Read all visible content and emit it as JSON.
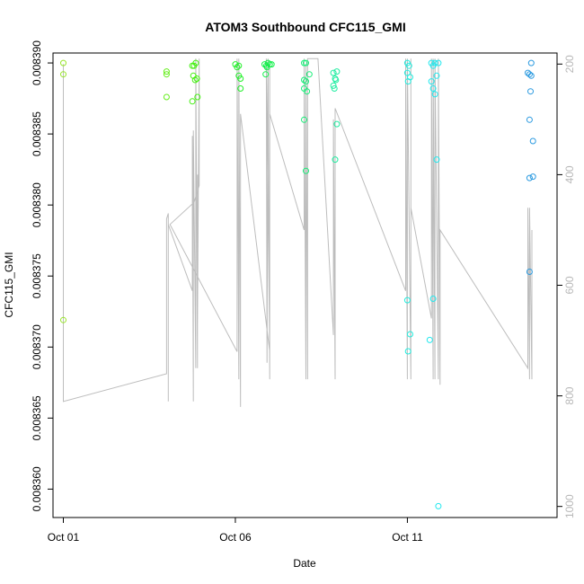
{
  "chart_data": {
    "type": "scatter",
    "title": "ATOM3 Southbound CFC115_GMI",
    "xlabel": "Date",
    "ylabel": "CFC115_GMI",
    "x_ticks": [
      {
        "label": "Oct 01",
        "day": 1
      },
      {
        "label": "Oct 06",
        "day": 6
      },
      {
        "label": "Oct 11",
        "day": 11
      }
    ],
    "xlim_days": [
      0.7,
      15.35
    ],
    "y_ticks": [
      "0.008360",
      "0.008365",
      "0.008370",
      "0.008375",
      "0.008380",
      "0.008385",
      "0.008390"
    ],
    "ylim": [
      0.008358,
      0.0083907
    ],
    "y2_ticks": [
      "200",
      "400",
      "600",
      "800",
      "1000"
    ],
    "y2lim": [
      1020,
      180
    ],
    "pressure_color": "#bdbdbd",
    "points": [
      {
        "day": 1.0,
        "value": 0.00839,
        "color": "#9ae62c"
      },
      {
        "day": 1.0,
        "value": 0.0083892,
        "color": "#9ae62c"
      },
      {
        "day": 1.0,
        "value": 0.0083719,
        "color": "#9ae62c"
      },
      {
        "day": 4.0,
        "value": 0.0083894,
        "color": "#66ee1c"
      },
      {
        "day": 4.0,
        "value": 0.0083892,
        "color": "#66ee1c"
      },
      {
        "day": 4.0,
        "value": 0.0083876,
        "color": "#66ee1c"
      },
      {
        "day": 4.75,
        "value": 0.0083898,
        "color": "#44f011"
      },
      {
        "day": 4.8,
        "value": 0.0083898,
        "color": "#44f011"
      },
      {
        "day": 4.85,
        "value": 0.00839,
        "color": "#44f011"
      },
      {
        "day": 4.78,
        "value": 0.0083891,
        "color": "#44f011"
      },
      {
        "day": 4.83,
        "value": 0.0083888,
        "color": "#44f011"
      },
      {
        "day": 4.88,
        "value": 0.0083889,
        "color": "#44f011"
      },
      {
        "day": 4.75,
        "value": 0.0083873,
        "color": "#44f011"
      },
      {
        "day": 4.9,
        "value": 0.0083876,
        "color": "#44f011"
      },
      {
        "day": 6.0,
        "value": 0.0083899,
        "color": "#22f02a"
      },
      {
        "day": 6.05,
        "value": 0.0083897,
        "color": "#22f02a"
      },
      {
        "day": 6.1,
        "value": 0.0083898,
        "color": "#22f02a"
      },
      {
        "day": 6.1,
        "value": 0.0083891,
        "color": "#22f02a"
      },
      {
        "day": 6.15,
        "value": 0.0083889,
        "color": "#22f02a"
      },
      {
        "day": 6.15,
        "value": 0.0083882,
        "color": "#22f02a"
      },
      {
        "day": 6.85,
        "value": 0.0083899,
        "color": "#11f04a"
      },
      {
        "day": 6.9,
        "value": 0.0083898,
        "color": "#11f04a"
      },
      {
        "day": 6.95,
        "value": 0.00839,
        "color": "#11f04a"
      },
      {
        "day": 7.0,
        "value": 0.0083899,
        "color": "#11f04a"
      },
      {
        "day": 6.92,
        "value": 0.0083897,
        "color": "#11f04a"
      },
      {
        "day": 6.88,
        "value": 0.0083892,
        "color": "#11f04a"
      },
      {
        "day": 7.05,
        "value": 0.0083899,
        "color": "#11f04a"
      },
      {
        "day": 8.0,
        "value": 0.00839,
        "color": "#18ee78"
      },
      {
        "day": 8.05,
        "value": 0.00839,
        "color": "#18ee78"
      },
      {
        "day": 8.0,
        "value": 0.0083888,
        "color": "#18ee78"
      },
      {
        "day": 8.05,
        "value": 0.0083887,
        "color": "#18ee78"
      },
      {
        "day": 8.0,
        "value": 0.0083882,
        "color": "#18ee78"
      },
      {
        "day": 8.08,
        "value": 0.008388,
        "color": "#18ee78"
      },
      {
        "day": 8.15,
        "value": 0.0083892,
        "color": "#18ee78"
      },
      {
        "day": 8.0,
        "value": 0.008386,
        "color": "#18ee78"
      },
      {
        "day": 8.05,
        "value": 0.0083824,
        "color": "#18ee78"
      },
      {
        "day": 8.85,
        "value": 0.0083893,
        "color": "#1eeda0"
      },
      {
        "day": 8.9,
        "value": 0.0083889,
        "color": "#1eeda0"
      },
      {
        "day": 8.95,
        "value": 0.0083894,
        "color": "#1eeda0"
      },
      {
        "day": 8.85,
        "value": 0.0083884,
        "color": "#1eeda0"
      },
      {
        "day": 8.88,
        "value": 0.0083882,
        "color": "#1eeda0"
      },
      {
        "day": 8.92,
        "value": 0.0083888,
        "color": "#1eeda0"
      },
      {
        "day": 8.95,
        "value": 0.0083857,
        "color": "#1eeda0"
      },
      {
        "day": 8.9,
        "value": 0.0083832,
        "color": "#1eeda0"
      },
      {
        "day": 11.0,
        "value": 0.00839,
        "color": "#22eee0"
      },
      {
        "day": 11.05,
        "value": 0.0083898,
        "color": "#22eee0"
      },
      {
        "day": 11.0,
        "value": 0.0083893,
        "color": "#22eee0"
      },
      {
        "day": 11.08,
        "value": 0.008389,
        "color": "#22eee0"
      },
      {
        "day": 11.02,
        "value": 0.0083887,
        "color": "#22eee0"
      },
      {
        "day": 11.0,
        "value": 0.0083733,
        "color": "#22eee0"
      },
      {
        "day": 11.08,
        "value": 0.0083709,
        "color": "#22eee0"
      },
      {
        "day": 11.02,
        "value": 0.0083697,
        "color": "#22eee0"
      },
      {
        "day": 11.7,
        "value": 0.00839,
        "color": "#22e8ee"
      },
      {
        "day": 11.8,
        "value": 0.00839,
        "color": "#22e8ee"
      },
      {
        "day": 11.9,
        "value": 0.00839,
        "color": "#22e8ee"
      },
      {
        "day": 11.75,
        "value": 0.0083898,
        "color": "#22e8ee"
      },
      {
        "day": 11.85,
        "value": 0.0083891,
        "color": "#22e8ee"
      },
      {
        "day": 11.7,
        "value": 0.0083887,
        "color": "#22e8ee"
      },
      {
        "day": 11.75,
        "value": 0.0083882,
        "color": "#22e8ee"
      },
      {
        "day": 11.8,
        "value": 0.0083878,
        "color": "#22e8ee"
      },
      {
        "day": 11.85,
        "value": 0.0083832,
        "color": "#22e8ee"
      },
      {
        "day": 11.75,
        "value": 0.0083734,
        "color": "#22e8ee"
      },
      {
        "day": 11.65,
        "value": 0.0083705,
        "color": "#22e8ee"
      },
      {
        "day": 11.9,
        "value": 0.0083588,
        "color": "#22e8ee"
      },
      {
        "day": 14.5,
        "value": 0.0083893,
        "color": "#2b9ae0"
      },
      {
        "day": 14.6,
        "value": 0.00839,
        "color": "#2b9ae0"
      },
      {
        "day": 14.55,
        "value": 0.0083892,
        "color": "#2b9ae0"
      },
      {
        "day": 14.6,
        "value": 0.0083891,
        "color": "#2b9ae0"
      },
      {
        "day": 14.58,
        "value": 0.008388,
        "color": "#2b9ae0"
      },
      {
        "day": 14.55,
        "value": 0.008386,
        "color": "#2b9ae0"
      },
      {
        "day": 14.65,
        "value": 0.0083845,
        "color": "#2b9ae0"
      },
      {
        "day": 14.55,
        "value": 0.0083819,
        "color": "#2b9ae0"
      },
      {
        "day": 14.65,
        "value": 0.008382,
        "color": "#2b9ae0"
      },
      {
        "day": 14.55,
        "value": 0.0083753,
        "color": "#2b9ae0"
      }
    ],
    "pressure_trace": [
      [
        1.0,
        200
      ],
      [
        1.0,
        810
      ],
      [
        4.0,
        760
      ],
      [
        4.0,
        480
      ],
      [
        4.05,
        470
      ],
      [
        4.05,
        810
      ],
      [
        4.05,
        490
      ],
      [
        4.75,
        610
      ],
      [
        4.75,
        330
      ],
      [
        4.78,
        810
      ],
      [
        4.78,
        320
      ],
      [
        4.85,
        750
      ],
      [
        4.85,
        190
      ],
      [
        4.9,
        750
      ],
      [
        4.9,
        400
      ],
      [
        4.9,
        670
      ],
      [
        4.95,
        190
      ],
      [
        4.95,
        420
      ],
      [
        4.8,
        450
      ],
      [
        4.1,
        490
      ],
      [
        6.05,
        720
      ],
      [
        6.05,
        190
      ],
      [
        6.1,
        770
      ],
      [
        6.1,
        190
      ],
      [
        6.15,
        820
      ],
      [
        6.15,
        290
      ],
      [
        7.0,
        720
      ],
      [
        6.9,
        190
      ],
      [
        6.92,
        740
      ],
      [
        6.95,
        190
      ],
      [
        7.0,
        770
      ],
      [
        7.0,
        200
      ],
      [
        7.0,
        290
      ],
      [
        8.0,
        500
      ],
      [
        8.0,
        190
      ],
      [
        8.05,
        770
      ],
      [
        8.05,
        200
      ],
      [
        8.1,
        770
      ],
      [
        8.1,
        190
      ],
      [
        8.4,
        190
      ],
      [
        8.85,
        690
      ],
      [
        8.85,
        300
      ],
      [
        8.9,
        770
      ],
      [
        8.9,
        280
      ],
      [
        10.95,
        610
      ],
      [
        10.95,
        190
      ],
      [
        11.0,
        770
      ],
      [
        11.0,
        190
      ],
      [
        11.1,
        770
      ],
      [
        11.1,
        190
      ],
      [
        11.1,
        460
      ],
      [
        11.7,
        660
      ],
      [
        11.7,
        190
      ],
      [
        11.75,
        770
      ],
      [
        11.75,
        190
      ],
      [
        11.8,
        770
      ],
      [
        11.8,
        190
      ],
      [
        11.9,
        770
      ],
      [
        11.9,
        190
      ],
      [
        11.95,
        780
      ],
      [
        11.95,
        500
      ],
      [
        14.5,
        750
      ],
      [
        14.5,
        460
      ],
      [
        14.55,
        770
      ],
      [
        14.55,
        460
      ],
      [
        14.62,
        770
      ],
      [
        14.62,
        500
      ],
      [
        14.62,
        770
      ]
    ]
  }
}
